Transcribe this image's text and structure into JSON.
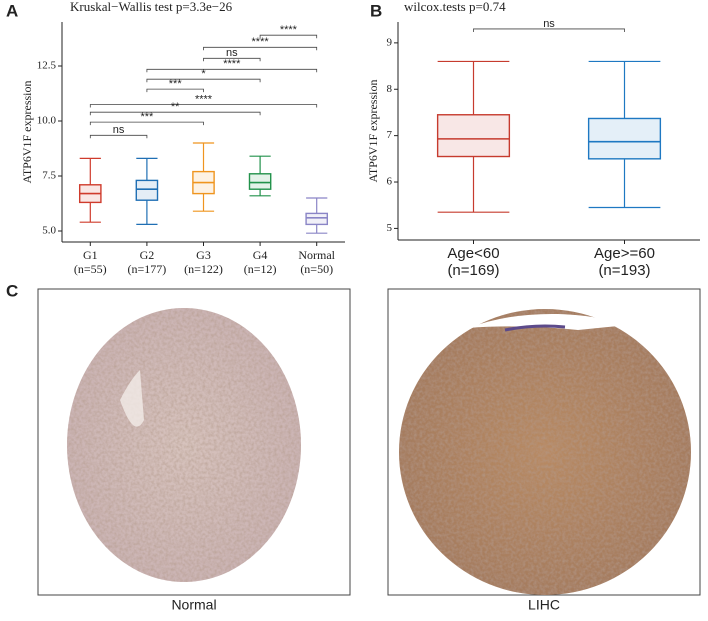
{
  "chart_data": [
    {
      "type": "box",
      "panel_label": "A",
      "title": "Kruskal−Wallis test p=3.3e−26",
      "ylabel": "ATP6V1F expression",
      "categories": [
        "G1",
        "G2",
        "G3",
        "G4",
        "Normal"
      ],
      "sublabels": [
        "(n=55)",
        "(n=177)",
        "(n=122)",
        "(n=12)",
        "(n=50)"
      ],
      "colors": [
        "#cf3b2c",
        "#1f6fb4",
        "#ef951f",
        "#22924b",
        "#8a85c6"
      ],
      "min": [
        5.4,
        5.3,
        5.9,
        6.6,
        4.9
      ],
      "q1": [
        6.3,
        6.4,
        6.7,
        6.9,
        5.3
      ],
      "median": [
        6.7,
        6.9,
        7.2,
        7.2,
        5.6
      ],
      "q3": [
        7.1,
        7.3,
        7.7,
        7.6,
        5.8
      ],
      "max": [
        8.3,
        8.3,
        9.0,
        8.4,
        6.5
      ],
      "ylim": [
        4.5,
        14.5
      ],
      "yticks": [
        {
          "value": 5,
          "label": "5.0"
        },
        {
          "value": 7.5,
          "label": "7.5"
        },
        {
          "value": 10,
          "label": "10.0"
        },
        {
          "value": 12.5,
          "label": "12.5"
        }
      ],
      "brackets": [
        {
          "from": 3,
          "to": 4,
          "y": 13.9,
          "label": "****"
        },
        {
          "from": 2,
          "to": 4,
          "y": 13.35,
          "label": "****"
        },
        {
          "from": 2,
          "to": 3,
          "y": 12.85,
          "label": "ns"
        },
        {
          "from": 1,
          "to": 4,
          "y": 12.35,
          "label": "****"
        },
        {
          "from": 1,
          "to": 3,
          "y": 11.9,
          "label": "*"
        },
        {
          "from": 1,
          "to": 2,
          "y": 11.45,
          "label": "***"
        },
        {
          "from": 0,
          "to": 4,
          "y": 10.75,
          "label": "****"
        },
        {
          "from": 0,
          "to": 3,
          "y": 10.4,
          "label": "**"
        },
        {
          "from": 0,
          "to": 2,
          "y": 9.95,
          "label": "***"
        },
        {
          "from": 0,
          "to": 1,
          "y": 9.35,
          "label": "ns"
        }
      ]
    },
    {
      "type": "box",
      "panel_label": "B",
      "title": "wilcox.tests p=0.74",
      "ylabel": "ATP6V1F expression",
      "categories": [
        "Age<60",
        "Age>=60"
      ],
      "sublabels": [
        "(n=169)",
        "(n=193)"
      ],
      "colors": [
        "#c63b2e",
        "#1e78c2"
      ],
      "min": [
        5.35,
        5.45
      ],
      "q1": [
        6.55,
        6.5
      ],
      "median": [
        6.93,
        6.87
      ],
      "q3": [
        7.45,
        7.37
      ],
      "max": [
        8.6,
        8.6
      ],
      "ylim": [
        4.75,
        9.45
      ],
      "yticks": [
        5,
        6,
        7,
        8,
        9
      ],
      "brackets": [
        {
          "from": 0,
          "to": 1,
          "y": 9.3,
          "label": "ns"
        }
      ]
    }
  ],
  "panel_c": {
    "label": "C",
    "images": [
      {
        "caption": "Normal"
      },
      {
        "caption": "LIHC"
      }
    ]
  }
}
